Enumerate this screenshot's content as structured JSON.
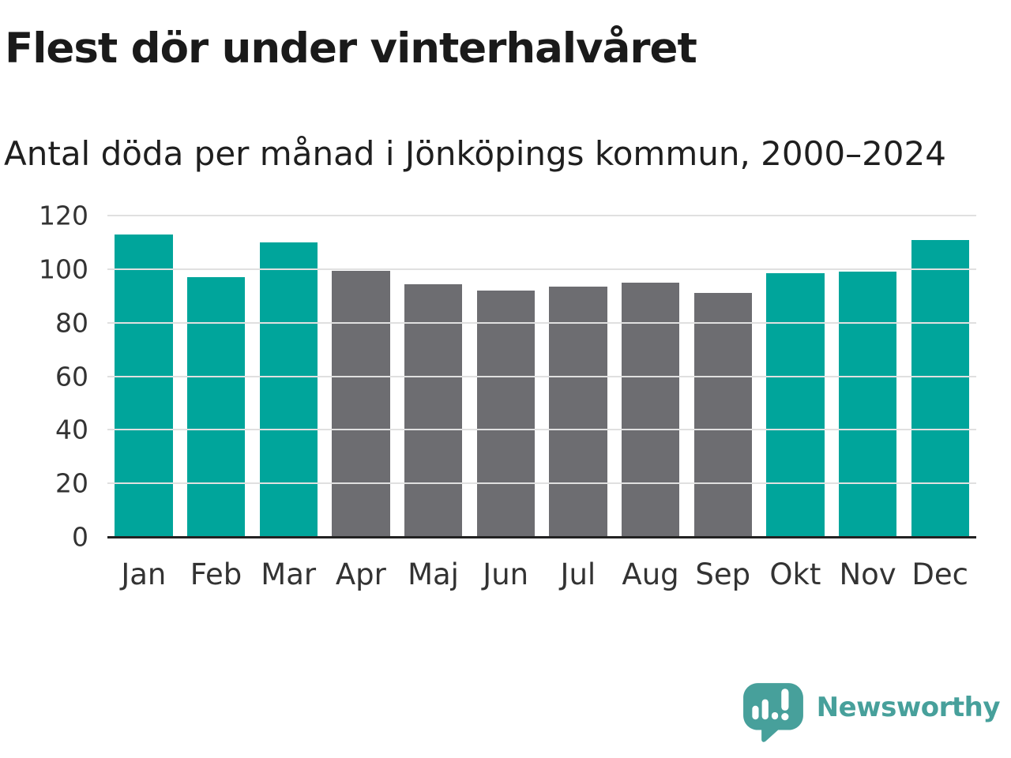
{
  "header": {
    "title": "Flest dör under vinterhalvåret",
    "subtitle": "Antal döda per månad i Jönköpings kommun, 2000–2024"
  },
  "chart_data": {
    "type": "bar",
    "title": "Flest dör under vinterhalvåret",
    "subtitle": "Antal döda per månad i Jönköpings kommun, 2000–2024",
    "categories": [
      "Jan",
      "Feb",
      "Mar",
      "Apr",
      "Maj",
      "Jun",
      "Jul",
      "Aug",
      "Sep",
      "Okt",
      "Nov",
      "Dec"
    ],
    "values": [
      113,
      97,
      110,
      99.5,
      94.5,
      92,
      93.5,
      95,
      91,
      98.5,
      99,
      111
    ],
    "bar_colors": [
      "highlight",
      "highlight",
      "highlight",
      "neutral",
      "neutral",
      "neutral",
      "neutral",
      "neutral",
      "neutral",
      "highlight",
      "highlight",
      "highlight"
    ],
    "xlabel": "",
    "ylabel": "",
    "ylim": [
      0,
      120
    ],
    "yticks": [
      0,
      20,
      40,
      60,
      80,
      100,
      120
    ],
    "grid": "horizontal",
    "legend": "none",
    "colors": {
      "highlight": "#00a59b",
      "neutral": "#6d6d71",
      "grid": "#e0e0e0",
      "axis": "#222222",
      "title_text": "#1a1a1a",
      "tick_text": "#333333"
    }
  },
  "branding": {
    "name": "Newsworthy",
    "logo_icon": "bar-chart-speech-bubble-icon",
    "color": "#47a09b"
  }
}
